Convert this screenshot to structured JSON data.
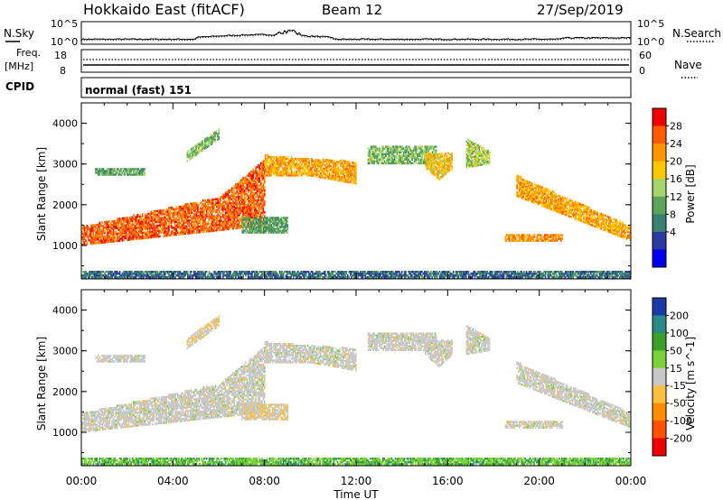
{
  "header": {
    "title": "Hokkaido East (fitACF)",
    "beam": "Beam 12",
    "date": "27/Sep/2019"
  },
  "noise_strip": {
    "left_label": "N.Sky",
    "right_label": "N.Search",
    "left_ticks": [
      "10^5",
      "10^0"
    ],
    "right_ticks": [
      "10^5",
      "10^0"
    ]
  },
  "freq_strip": {
    "left_label": "Freq.",
    "unit": "[MHz]",
    "left_ticks": [
      "18",
      "8"
    ],
    "right_label": "Nave",
    "right_ticks": [
      "60",
      "0"
    ]
  },
  "cpid": {
    "label": "CPID",
    "value": "normal (fast) 151"
  },
  "chart_data": [
    {
      "type": "heatmap",
      "quantity": "Power",
      "ylabel": "Slant Range [km]",
      "yticks": [
        "4000",
        "3000",
        "2000",
        "1000"
      ],
      "ylim": [
        180,
        4500
      ],
      "colorbar": {
        "label": "Power [dB]",
        "ticks": [
          "28",
          "24",
          "20",
          "16",
          "12",
          "8",
          "4"
        ],
        "colors": [
          "#ee0000",
          "#ff5a00",
          "#ff9600",
          "#ffc800",
          "#a6d56a",
          "#5aa55a",
          "#3a8070",
          "#2a3aa0",
          "#0000ee"
        ]
      },
      "echo_regions": [
        {
          "t": [
            0.0,
            8.0
          ],
          "range": [
            1000,
            1500
          ],
          "note_free": true,
          "level": 26
        },
        {
          "t": [
            3.0,
            8.0
          ],
          "range": [
            1500,
            2600
          ],
          "level": 24
        },
        {
          "t": [
            0.5,
            3.0
          ],
          "range": [
            2750,
            2850
          ],
          "level": 12
        },
        {
          "t": [
            4.5,
            6.0
          ],
          "range": [
            3100,
            3900
          ],
          "level": 14
        },
        {
          "t": [
            8.0,
            12.0
          ],
          "range": [
            2700,
            3200
          ],
          "level": 22
        },
        {
          "t": [
            7.0,
            9.0
          ],
          "range": [
            1300,
            1700
          ],
          "level": 12
        },
        {
          "t": [
            12.0,
            18.0
          ],
          "range": [
            2900,
            3500
          ],
          "level": 16
        },
        {
          "t": [
            18.5,
            24.0
          ],
          "range": [
            1000,
            2600
          ],
          "level": 22
        },
        {
          "t": [
            0.0,
            24.0
          ],
          "range": [
            200,
            350
          ],
          "level": 8
        }
      ]
    },
    {
      "type": "heatmap",
      "quantity": "Velocity",
      "ylabel": "Slant Range [km]",
      "yticks": [
        "4000",
        "3000",
        "2000",
        "1000"
      ],
      "ylim": [
        180,
        4500
      ],
      "colorbar": {
        "label": "Velocity [m s^-1]",
        "ticks": [
          "200",
          "100",
          "50",
          "15",
          "-15",
          "-50",
          "-100",
          "-200"
        ],
        "colors": [
          "#1a3aa8",
          "#2a8a8a",
          "#3aa02a",
          "#7ad23a",
          "#c8c8c8",
          "#ffc040",
          "#ff8c00",
          "#ff5000",
          "#ee0000"
        ]
      },
      "x": {
        "xlabel": "Time UT",
        "xticks": [
          "00:00",
          "04:00",
          "08:00",
          "12:00",
          "16:00",
          "20:00",
          "00:00"
        ]
      }
    }
  ]
}
